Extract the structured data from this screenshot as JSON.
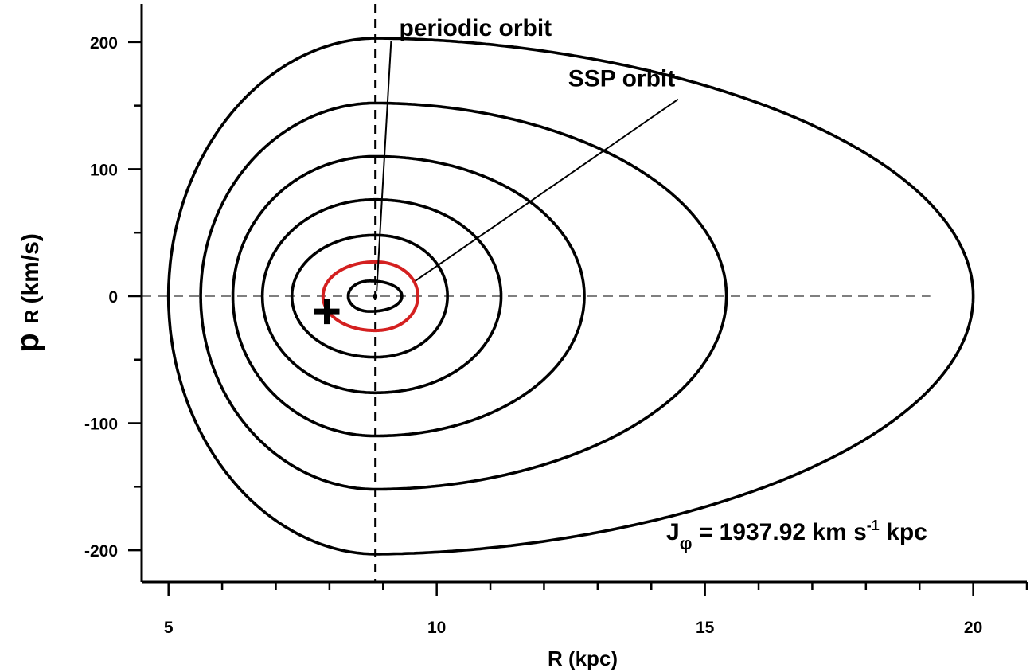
{
  "chart_data": {
    "type": "line",
    "title": "",
    "xlabel": "R (kpc)",
    "ylabel": {
      "main": "p",
      "subscript": "R",
      "rest": " (km/s)"
    },
    "xlim": [
      4.5,
      21
    ],
    "ylim": [
      -225,
      230
    ],
    "x_ticks": [
      5,
      10,
      15,
      20
    ],
    "y_ticks": [
      -200,
      -100,
      0,
      100,
      200
    ],
    "x_tick_labels": [
      "5",
      "10",
      "15",
      "20"
    ],
    "y_tick_labels": [
      "-200",
      "-100",
      "0",
      "100",
      "200"
    ],
    "x_minor_step": 1,
    "y_minor_step": 50,
    "grid": false,
    "reference_lines": {
      "vertical_x": 8.85,
      "horizontal_y": 0,
      "horizontal_x_range": [
        4.5,
        19.2
      ]
    },
    "series": [
      {
        "color": "#000000",
        "rmin": 5.0,
        "rmax": 20.0,
        "peak": 203,
        "peak_at": 8.85
      },
      {
        "color": "#000000",
        "rmin": 5.6,
        "rmax": 15.4,
        "peak": 152,
        "peak_at": 8.85
      },
      {
        "color": "#000000",
        "rmin": 6.2,
        "rmax": 12.75,
        "peak": 110,
        "peak_at": 8.85
      },
      {
        "color": "#000000",
        "rmin": 6.75,
        "rmax": 11.2,
        "peak": 76,
        "peak_at": 8.85
      },
      {
        "color": "#000000",
        "rmin": 7.3,
        "rmax": 10.2,
        "peak": 48,
        "peak_at": 8.85
      },
      {
        "color": "#d42020",
        "rmin": 7.88,
        "rmax": 9.65,
        "peak": 27,
        "peak_at": 8.85
      },
      {
        "color": "#000000",
        "rmin": 8.35,
        "rmax": 9.35,
        "peak": 12,
        "peak_at": 8.75
      }
    ],
    "periodic_point": {
      "x": 8.85,
      "y": 0
    },
    "sun_marker": {
      "x": 7.95,
      "y": -12,
      "symbol": "+"
    },
    "annotations": [
      {
        "text": "periodic orbit",
        "label_x": 9.3,
        "label_y": 205,
        "line_from": [
          9.15,
          201
        ],
        "line_to": [
          8.88,
          4
        ]
      },
      {
        "text": "SSP orbit",
        "label_x": 12.45,
        "label_y": 165,
        "line_from": [
          14.5,
          155
        ],
        "line_to": [
          9.6,
          12
        ]
      }
    ],
    "jphi_label": {
      "parts": [
        "J",
        "φ",
        " = 1937.92 km s",
        "-1",
        " kpc"
      ]
    }
  }
}
